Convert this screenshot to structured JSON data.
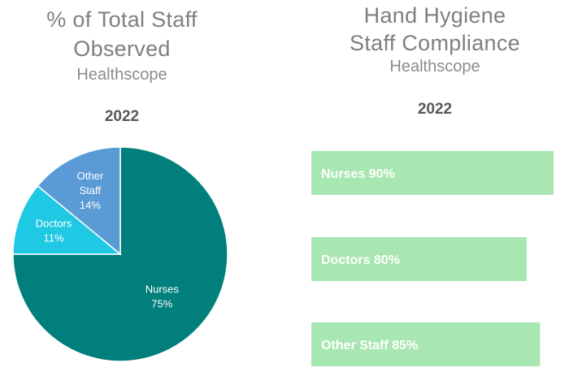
{
  "pie_chart": {
    "title_line1": "% of Total Staff",
    "title_line2": "Observed",
    "subtitle": "Healthscope",
    "year": "2022"
  },
  "bar_chart": {
    "title_line1": "Hand Hygiene",
    "title_line2": "Staff Compliance",
    "subtitle": "Healthscope",
    "year": "2022"
  },
  "chart_data": [
    {
      "type": "pie",
      "title": "% of Total Staff Observed",
      "subtitle": "Healthscope",
      "categories": [
        "Nurses",
        "Doctors",
        "Other Staff"
      ],
      "values": [
        75,
        11,
        14
      ],
      "labels": [
        [
          "Nurses",
          "75%"
        ],
        [
          "Doctors",
          "11%"
        ],
        [
          "Other",
          "Staff",
          "14%"
        ]
      ],
      "colors": [
        "#007f7d",
        "#1fc9e3",
        "#5b9bd5"
      ]
    },
    {
      "type": "bar",
      "orientation": "horizontal",
      "title": "Hand Hygiene Staff Compliance",
      "subtitle": "Healthscope",
      "categories": [
        "Nurses",
        "Doctors",
        "Other Staff"
      ],
      "values": [
        90,
        80,
        85
      ],
      "labels": [
        "Nurses 90%",
        "Doctors 80%",
        "Other Staff 85%"
      ],
      "bar_color": "#a8e6b2",
      "grid": false
    }
  ]
}
